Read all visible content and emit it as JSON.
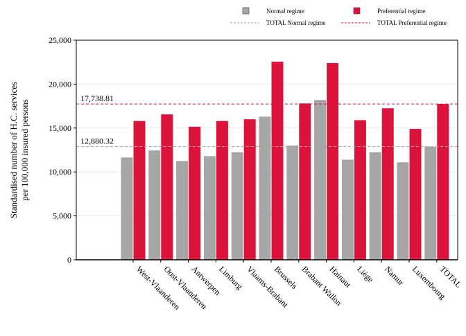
{
  "chart_data": {
    "type": "bar",
    "title": "",
    "xlabel": "",
    "ylabel": "Standardised number of H.C. services per 100,000 insured persons",
    "ylabel_lines": [
      "Standardised number of H.C. services",
      "per 100,000 insured persons"
    ],
    "ylim": [
      0,
      25000
    ],
    "yticks": [
      0,
      5000,
      10000,
      15000,
      20000,
      25000
    ],
    "ytick_labels": [
      "0",
      "5,000",
      "10,000",
      "15,000",
      "20,000",
      "25,000"
    ],
    "grid": true,
    "legend_position": "top-right",
    "categories": [
      "West-Vlaanderen",
      "Oost-Vlaanderen",
      "Antwerpen",
      "Limburg",
      "Vlaams-Brabant",
      "Brussels",
      "Brabant Wallon",
      "Hainaut",
      "Liège",
      "Namur",
      "Luxembourg",
      "TOTAL"
    ],
    "series": [
      {
        "name": "Normal regime",
        "color": "#a6a6a6",
        "values": [
          11650,
          12450,
          11250,
          11800,
          12250,
          16300,
          13000,
          18200,
          11400,
          12250,
          11100,
          12880
        ]
      },
      {
        "name": "Preferential regime",
        "color": "#dc143c",
        "values": [
          15800,
          16550,
          15150,
          15800,
          16000,
          22550,
          17800,
          22400,
          15900,
          17250,
          14900,
          17740
        ]
      }
    ],
    "reference_lines": [
      {
        "name": "TOTAL Normal regime",
        "value": 12880.32,
        "label": "12,880.32",
        "color": "#a6a6a6"
      },
      {
        "name": "TOTAL Preferential regime",
        "value": 17738.81,
        "label": "17,738.81",
        "color": "#dc143c"
      }
    ]
  }
}
